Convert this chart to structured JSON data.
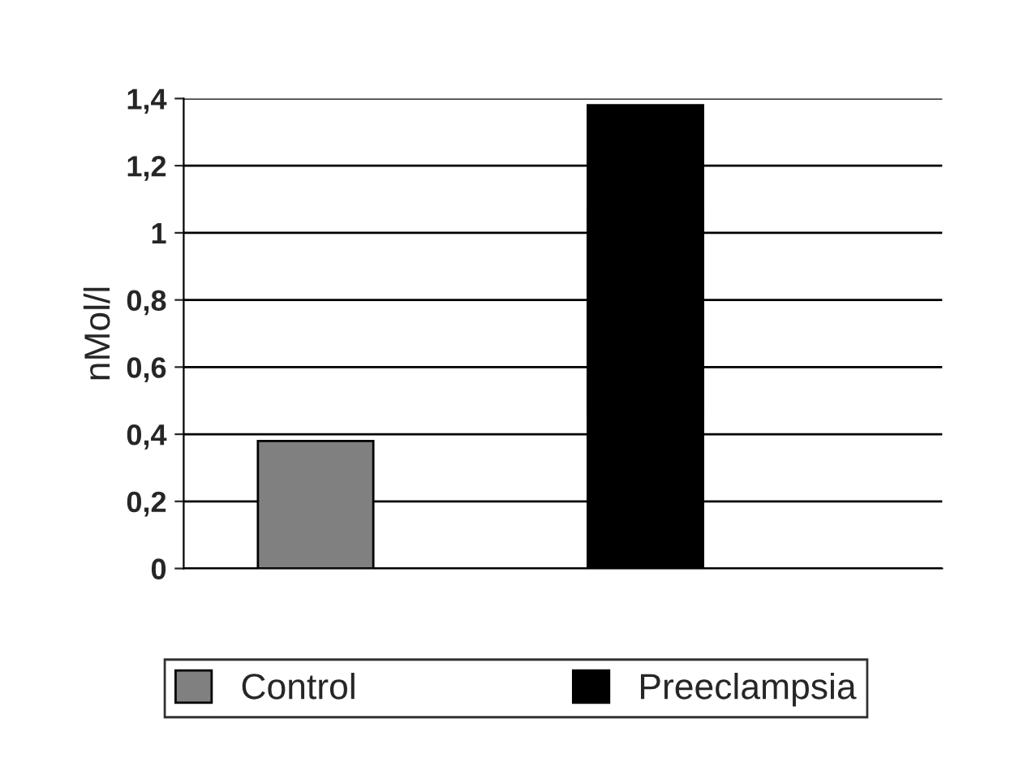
{
  "chart_data": {
    "type": "bar",
    "ylabel": "nMol/l",
    "categories": [
      null,
      null
    ],
    "series": [
      {
        "name": "Control",
        "color": "#808080",
        "values": [
          0.38,
          null
        ]
      },
      {
        "name": "Preeclampsia",
        "color": "#000000",
        "values": [
          null,
          1.38
        ]
      }
    ],
    "ylim": [
      0,
      1.4
    ],
    "yticks": [
      0,
      {
        "value": 0.2,
        "label": "0,2"
      },
      {
        "value": 0.4,
        "label": "0,4"
      },
      {
        "value": 0.6,
        "label": "0,6"
      },
      {
        "value": 0.8,
        "label": "0,8"
      },
      1,
      {
        "value": 1.2,
        "label": "1,2"
      },
      {
        "value": 1.4,
        "label": "1,4"
      }
    ],
    "grid": "y",
    "legend": "bottom"
  }
}
